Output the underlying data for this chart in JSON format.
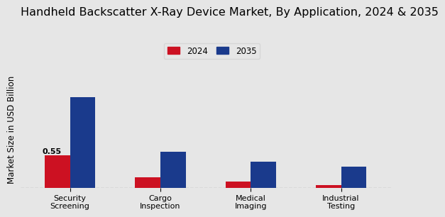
{
  "title": "Handheld Backscatter X-Ray Device Market, By Application, 2024 & 2035",
  "ylabel": "Market Size in USD Billion",
  "categories": [
    "Security\nScreening",
    "Cargo\nInspection",
    "Medical\nImaging",
    "Industrial\nTesting"
  ],
  "values_2024": [
    0.55,
    0.18,
    0.1,
    0.04
  ],
  "values_2035": [
    1.55,
    0.62,
    0.44,
    0.36
  ],
  "color_2024": "#cc1122",
  "color_2035": "#1a3a8c",
  "background_color": "#e6e6e6",
  "bar_width": 0.28,
  "label_2024": "2024",
  "label_2035": "2035",
  "annotation_value": "0.55",
  "ylim": [
    0,
    2.0
  ],
  "title_fontsize": 11.5,
  "axis_label_fontsize": 8.5,
  "tick_fontsize": 8.0,
  "legend_fontsize": 8.5
}
